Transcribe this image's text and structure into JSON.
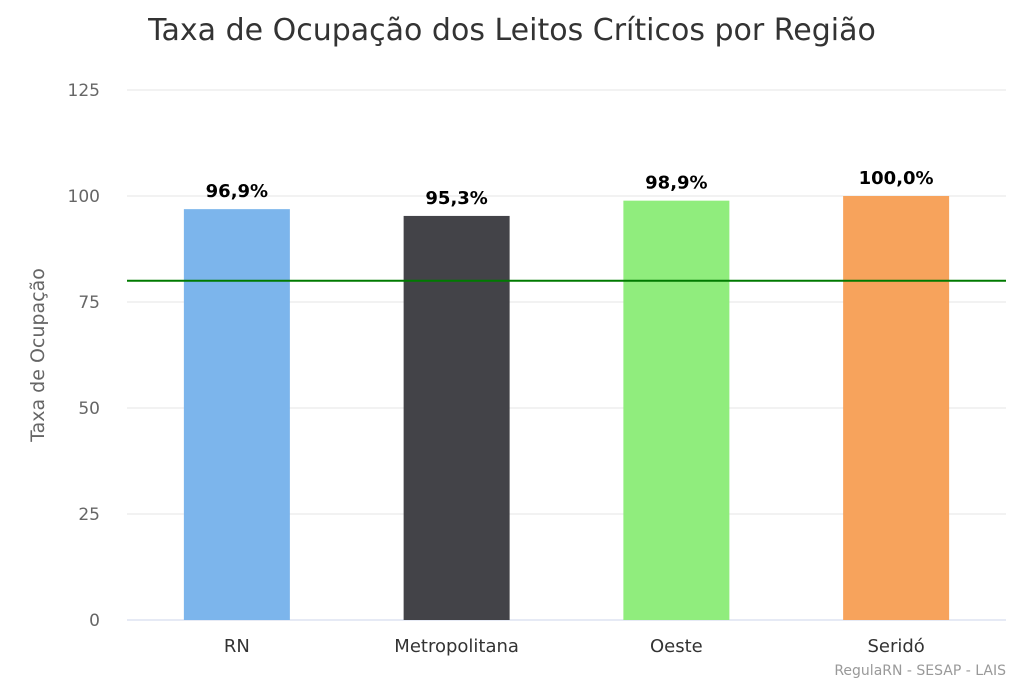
{
  "chart_data": {
    "type": "bar",
    "title": "Taxa de Ocupação dos Leitos Críticos por Região",
    "ylabel": "Taxa de Ocupação",
    "xlabel": "",
    "categories": [
      "RN",
      "Metropolitana",
      "Oeste",
      "Seridó"
    ],
    "values": [
      96.9,
      95.3,
      98.9,
      100.0
    ],
    "data_labels": [
      "96,9%",
      "95,3%",
      "98,9%",
      "100,0%"
    ],
    "colors": [
      "#7cb5ec",
      "#434348",
      "#90ed7d",
      "#f7a35c"
    ],
    "ylim": [
      0,
      125
    ],
    "yticks": [
      0,
      25,
      50,
      75,
      100,
      125
    ],
    "reference_line": {
      "value": 80,
      "color": "#007a00"
    },
    "grid": true,
    "legend": "none",
    "credits": "RegulaRN - SESAP - LAIS"
  }
}
